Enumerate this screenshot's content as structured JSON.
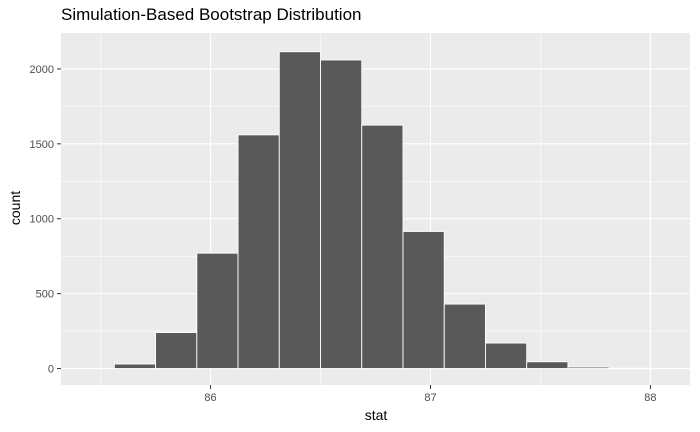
{
  "chart_data": {
    "type": "bar",
    "title": "Simulation-Based Bootstrap Distribution",
    "xlabel": "stat",
    "ylabel": "count",
    "xlim": [
      85.32,
      88.18
    ],
    "ylim": [
      -110,
      2240
    ],
    "x_ticks": [
      86,
      87,
      88
    ],
    "y_ticks": [
      0,
      500,
      1000,
      1500,
      2000
    ],
    "bin_width": 0.1875,
    "bins": [
      {
        "x0": 85.5625,
        "x1": 85.75,
        "count": 30
      },
      {
        "x0": 85.75,
        "x1": 85.9375,
        "count": 240
      },
      {
        "x0": 85.9375,
        "x1": 86.125,
        "count": 770
      },
      {
        "x0": 86.125,
        "x1": 86.3125,
        "count": 1560
      },
      {
        "x0": 86.3125,
        "x1": 86.5,
        "count": 2115
      },
      {
        "x0": 86.5,
        "x1": 86.6875,
        "count": 2060
      },
      {
        "x0": 86.6875,
        "x1": 86.875,
        "count": 1625
      },
      {
        "x0": 86.875,
        "x1": 87.0625,
        "count": 915
      },
      {
        "x0": 87.0625,
        "x1": 87.25,
        "count": 430
      },
      {
        "x0": 87.25,
        "x1": 87.4375,
        "count": 170
      },
      {
        "x0": 87.4375,
        "x1": 87.625,
        "count": 45
      },
      {
        "x0": 87.625,
        "x1": 87.8125,
        "count": 10
      },
      {
        "x0": 87.8125,
        "x1": 88.0,
        "count": 2
      }
    ],
    "grid": true,
    "colors": {
      "panel": "#ebebeb",
      "grid_major": "#ffffff",
      "bar_fill": "#595959",
      "bar_outline": "#ffffff"
    }
  }
}
